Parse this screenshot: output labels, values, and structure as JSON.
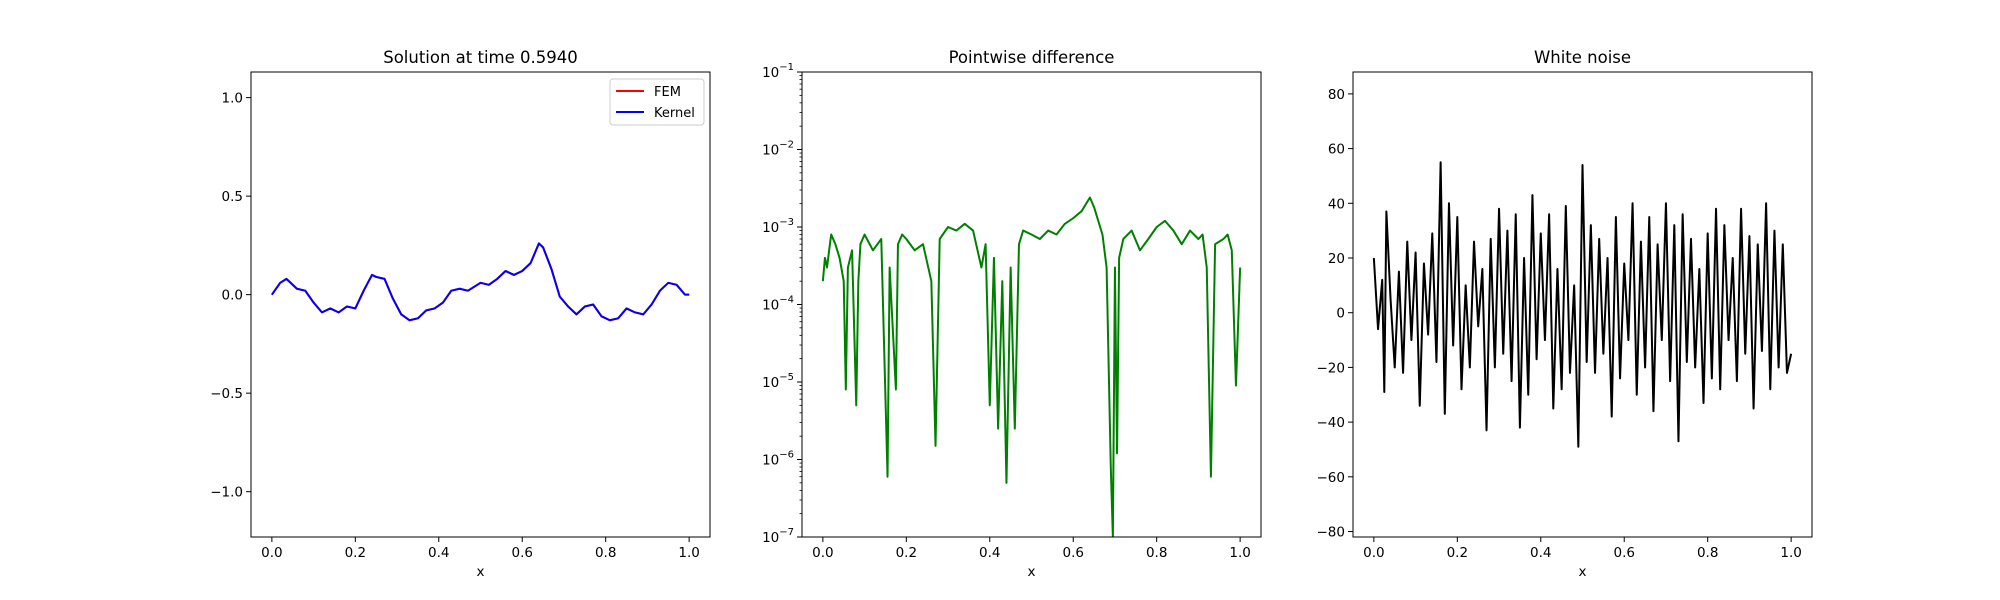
{
  "chart_data": [
    {
      "type": "line",
      "title": "Solution at time 0.5940",
      "xlabel": "x",
      "ylabel": "",
      "xlim": [
        -0.05,
        1.05
      ],
      "ylim": [
        -1.23,
        1.13
      ],
      "xticks": [
        0.0,
        0.2,
        0.4,
        0.6,
        0.8,
        1.0
      ],
      "xtick_labels": [
        "0.0",
        "0.2",
        "0.4",
        "0.6",
        "0.8",
        "1.0"
      ],
      "yticks": [
        -1.0,
        -0.5,
        0.0,
        0.5,
        1.0
      ],
      "ytick_labels": [
        "−1.0",
        "−0.5",
        "0.0",
        "0.5",
        "1.0"
      ],
      "legend_position": "top-right",
      "series": [
        {
          "name": "FEM",
          "color": "#ff0000",
          "x": [
            0.0,
            0.02,
            0.035,
            0.06,
            0.08,
            0.1,
            0.12,
            0.14,
            0.16,
            0.18,
            0.2,
            0.22,
            0.24,
            0.25,
            0.27,
            0.29,
            0.31,
            0.33,
            0.35,
            0.37,
            0.39,
            0.41,
            0.43,
            0.45,
            0.47,
            0.5,
            0.52,
            0.54,
            0.56,
            0.58,
            0.6,
            0.62,
            0.64,
            0.65,
            0.67,
            0.69,
            0.71,
            0.73,
            0.75,
            0.77,
            0.79,
            0.81,
            0.83,
            0.85,
            0.87,
            0.89,
            0.91,
            0.93,
            0.95,
            0.97,
            0.99,
            1.0
          ],
          "y": [
            0.0,
            0.06,
            0.08,
            0.03,
            0.02,
            -0.04,
            -0.09,
            -0.07,
            -0.09,
            -0.06,
            -0.07,
            0.02,
            0.1,
            0.09,
            0.08,
            -0.02,
            -0.1,
            -0.13,
            -0.12,
            -0.08,
            -0.07,
            -0.04,
            0.02,
            0.03,
            0.02,
            0.06,
            0.05,
            0.08,
            0.12,
            0.1,
            0.12,
            0.16,
            0.26,
            0.24,
            0.13,
            -0.01,
            -0.06,
            -0.1,
            -0.06,
            -0.05,
            -0.11,
            -0.13,
            -0.12,
            -0.07,
            -0.09,
            -0.1,
            -0.05,
            0.02,
            0.06,
            0.05,
            0.0,
            0.0
          ]
        },
        {
          "name": "Kernel",
          "color": "#0000ff",
          "x": [
            0.0,
            0.02,
            0.035,
            0.06,
            0.08,
            0.1,
            0.12,
            0.14,
            0.16,
            0.18,
            0.2,
            0.22,
            0.24,
            0.25,
            0.27,
            0.29,
            0.31,
            0.33,
            0.35,
            0.37,
            0.39,
            0.41,
            0.43,
            0.45,
            0.47,
            0.5,
            0.52,
            0.54,
            0.56,
            0.58,
            0.6,
            0.62,
            0.64,
            0.65,
            0.67,
            0.69,
            0.71,
            0.73,
            0.75,
            0.77,
            0.79,
            0.81,
            0.83,
            0.85,
            0.87,
            0.89,
            0.91,
            0.93,
            0.95,
            0.97,
            0.99,
            1.0
          ],
          "y": [
            0.0,
            0.06,
            0.08,
            0.03,
            0.02,
            -0.04,
            -0.09,
            -0.07,
            -0.09,
            -0.06,
            -0.07,
            0.02,
            0.1,
            0.09,
            0.08,
            -0.02,
            -0.1,
            -0.13,
            -0.12,
            -0.08,
            -0.07,
            -0.04,
            0.02,
            0.03,
            0.02,
            0.06,
            0.05,
            0.08,
            0.12,
            0.1,
            0.12,
            0.16,
            0.26,
            0.24,
            0.13,
            -0.01,
            -0.06,
            -0.1,
            -0.06,
            -0.05,
            -0.11,
            -0.13,
            -0.12,
            -0.07,
            -0.09,
            -0.1,
            -0.05,
            0.02,
            0.06,
            0.05,
            0.0,
            0.0
          ]
        }
      ]
    },
    {
      "type": "line",
      "title": "Pointwise difference",
      "xlabel": "x",
      "ylabel": "",
      "yscale": "log",
      "xlim": [
        -0.05,
        1.05
      ],
      "ylim": [
        1e-07,
        0.1
      ],
      "xticks": [
        0.0,
        0.2,
        0.4,
        0.6,
        0.8,
        1.0
      ],
      "xtick_labels": [
        "0.0",
        "0.2",
        "0.4",
        "0.6",
        "0.8",
        "1.0"
      ],
      "ytick_exponents": [
        -7,
        -6,
        -5,
        -4,
        -3,
        -2,
        -1
      ],
      "ytick_labels": [
        "10",
        "10",
        "10",
        "10",
        "10",
        "10",
        "10"
      ],
      "series": [
        {
          "color": "#008000",
          "x": [
            0.0,
            0.005,
            0.01,
            0.015,
            0.02,
            0.03,
            0.04,
            0.05,
            0.055,
            0.06,
            0.07,
            0.08,
            0.085,
            0.09,
            0.1,
            0.12,
            0.14,
            0.155,
            0.16,
            0.175,
            0.18,
            0.19,
            0.2,
            0.22,
            0.24,
            0.26,
            0.27,
            0.28,
            0.3,
            0.32,
            0.34,
            0.36,
            0.38,
            0.39,
            0.4,
            0.41,
            0.42,
            0.43,
            0.44,
            0.45,
            0.46,
            0.47,
            0.48,
            0.5,
            0.52,
            0.54,
            0.56,
            0.58,
            0.6,
            0.62,
            0.64,
            0.65,
            0.67,
            0.68,
            0.69,
            0.695,
            0.7,
            0.705,
            0.71,
            0.72,
            0.74,
            0.76,
            0.78,
            0.8,
            0.82,
            0.84,
            0.86,
            0.88,
            0.9,
            0.91,
            0.92,
            0.93,
            0.94,
            0.96,
            0.97,
            0.98,
            0.99,
            1.0
          ],
          "y": [
            0.0002,
            0.0004,
            0.0003,
            0.0005,
            0.0008,
            0.0006,
            0.0004,
            0.0002,
            8e-06,
            0.0003,
            0.0005,
            5e-06,
            0.0002,
            0.0006,
            0.0008,
            0.0005,
            0.0007,
            6e-07,
            0.0003,
            8e-06,
            0.0006,
            0.0008,
            0.0007,
            0.0005,
            0.0006,
            0.0002,
            1.5e-06,
            0.0007,
            0.001,
            0.0009,
            0.0011,
            0.0009,
            0.0003,
            0.0006,
            5e-06,
            0.0004,
            2.5e-06,
            0.0002,
            5e-07,
            0.0003,
            2.5e-06,
            0.0006,
            0.0009,
            0.0008,
            0.0007,
            0.0009,
            0.0008,
            0.0011,
            0.0013,
            0.0016,
            0.0024,
            0.0018,
            0.0008,
            0.0003,
            8e-07,
            1e-07,
            0.0003,
            1.2e-06,
            0.0004,
            0.0007,
            0.0009,
            0.0005,
            0.0007,
            0.001,
            0.0012,
            0.0009,
            0.0006,
            0.0009,
            0.0007,
            0.0008,
            0.0003,
            6e-07,
            0.0006,
            0.0007,
            0.0008,
            0.0005,
            9e-06,
            0.0003
          ]
        }
      ]
    },
    {
      "type": "line",
      "title": "White noise",
      "xlabel": "x",
      "ylabel": "",
      "xlim": [
        -0.05,
        1.05
      ],
      "ylim": [
        -82,
        88
      ],
      "xticks": [
        0.0,
        0.2,
        0.4,
        0.6,
        0.8,
        1.0
      ],
      "xtick_labels": [
        "0.0",
        "0.2",
        "0.4",
        "0.6",
        "0.8",
        "1.0"
      ],
      "yticks": [
        -80,
        -60,
        -40,
        -20,
        0,
        20,
        40,
        60,
        80
      ],
      "ytick_labels": [
        "−80",
        "−60",
        "−40",
        "−20",
        "0",
        "20",
        "40",
        "60",
        "80"
      ],
      "series": [
        {
          "color": "#000000",
          "x": [
            0.0,
            0.01,
            0.02,
            0.025,
            0.03,
            0.04,
            0.05,
            0.06,
            0.07,
            0.08,
            0.09,
            0.1,
            0.11,
            0.12,
            0.13,
            0.14,
            0.15,
            0.16,
            0.17,
            0.18,
            0.19,
            0.2,
            0.21,
            0.22,
            0.23,
            0.24,
            0.25,
            0.26,
            0.27,
            0.28,
            0.29,
            0.3,
            0.31,
            0.32,
            0.33,
            0.34,
            0.35,
            0.36,
            0.37,
            0.38,
            0.39,
            0.4,
            0.41,
            0.42,
            0.43,
            0.44,
            0.45,
            0.46,
            0.47,
            0.48,
            0.49,
            0.5,
            0.51,
            0.52,
            0.53,
            0.54,
            0.55,
            0.56,
            0.57,
            0.58,
            0.59,
            0.6,
            0.61,
            0.62,
            0.63,
            0.64,
            0.65,
            0.66,
            0.67,
            0.68,
            0.69,
            0.7,
            0.71,
            0.72,
            0.73,
            0.74,
            0.75,
            0.76,
            0.77,
            0.78,
            0.79,
            0.8,
            0.81,
            0.82,
            0.83,
            0.84,
            0.85,
            0.86,
            0.87,
            0.88,
            0.89,
            0.9,
            0.91,
            0.92,
            0.93,
            0.94,
            0.95,
            0.96,
            0.97,
            0.98,
            0.99,
            1.0
          ],
          "y": [
            20,
            -6,
            12,
            -29,
            37,
            5,
            -20,
            15,
            -22,
            26,
            -10,
            22,
            -34,
            18,
            -8,
            29,
            -18,
            55,
            -37,
            40,
            -12,
            35,
            -28,
            10,
            -20,
            26,
            -5,
            16,
            -43,
            27,
            -20,
            38,
            -15,
            30,
            -25,
            36,
            -42,
            20,
            -30,
            43,
            -17,
            29,
            -10,
            36,
            -35,
            16,
            -28,
            39,
            -22,
            10,
            -49,
            54,
            -18,
            32,
            -22,
            27,
            -15,
            20,
            -38,
            35,
            -24,
            18,
            -10,
            40,
            -30,
            26,
            -20,
            35,
            -36,
            25,
            -10,
            40,
            -25,
            32,
            -47,
            36,
            -18,
            27,
            -20,
            16,
            -33,
            29,
            -24,
            38,
            -28,
            32,
            -10,
            20,
            -25,
            38,
            -15,
            28,
            -35,
            25,
            -14,
            40,
            -28,
            30,
            -20,
            25,
            -22,
            -15
          ]
        }
      ]
    }
  ]
}
